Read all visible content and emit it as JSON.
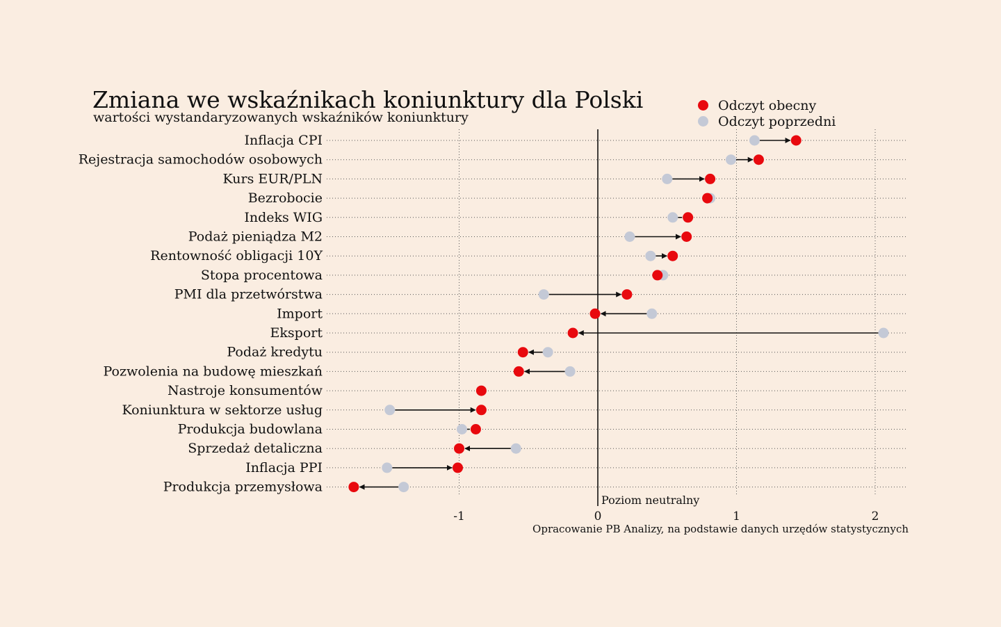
{
  "chart_data": {
    "type": "scatter",
    "title": "Zmiana we wskaźnikach koniunktury dla Polski",
    "subtitle": "wartości wystandaryzowanych wskaźników koniunktury",
    "source": "Opracowanie PB Analizy, na podstawie danych urzędów statystycznych",
    "reference_line": {
      "x": 0,
      "label": "Poziom neutralny"
    },
    "xticks": [
      -1,
      0,
      1,
      2
    ],
    "xlim": [
      -1.93,
      2.22
    ],
    "grid": "horizontal-dotted",
    "legend_placement": "top-right",
    "series": [
      {
        "name": "Odczyt obecny",
        "color": "#e8090e"
      },
      {
        "name": "Odczyt poprzedni",
        "color": "#c4c9d6"
      }
    ],
    "categories": [
      "Inflacja CPI",
      "Rejestracja samochodów osobowych",
      "Kurs EUR/PLN",
      "Bezrobocie",
      "Indeks WIG",
      "Podaż pieniądza M2",
      "Rentowność obligacji 10Y",
      "Stopa procentowa",
      "PMI dla przetwórstwa",
      "Import",
      "Eksport",
      "Podaż kredytu",
      "Pozwolenia na budowę mieszkań",
      "Nastroje konsumentów",
      "Koniunktura w sektorze usług",
      "Produkcja budowlana",
      "Sprzedaż detaliczna",
      "Inflacja PPI",
      "Produkcja przemysłowa"
    ],
    "current": [
      1.43,
      1.16,
      0.81,
      0.79,
      0.65,
      0.64,
      0.54,
      0.43,
      0.21,
      -0.02,
      -0.18,
      -0.54,
      -0.57,
      -0.84,
      -0.84,
      -0.88,
      -1.0,
      -1.01,
      -1.76
    ],
    "previous": [
      1.13,
      0.96,
      0.5,
      0.81,
      0.54,
      0.23,
      0.38,
      0.47,
      -0.39,
      0.39,
      2.06,
      -0.36,
      -0.2,
      -0.84,
      -1.5,
      -0.98,
      -0.59,
      -1.52,
      -1.4
    ]
  }
}
